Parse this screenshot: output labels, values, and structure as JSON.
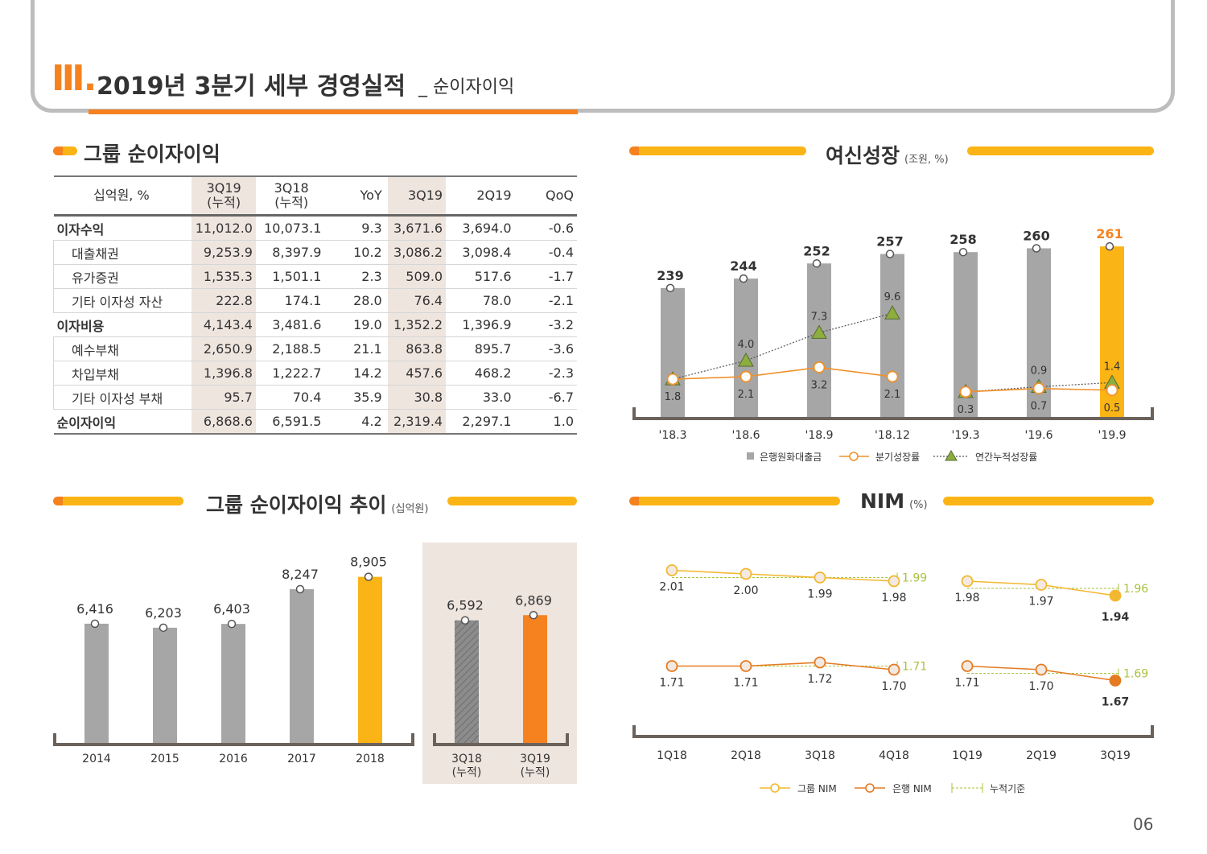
{
  "header": {
    "roman": "Ⅲ.",
    "title": "2019년 3분기 세부 경영실적",
    "subtitle": "_ 순이자이익"
  },
  "table": {
    "title": "그룹 순이자이익",
    "headers": [
      "십억원, %",
      "3Q19\n(누적)",
      "3Q18\n(누적)",
      "YoY",
      "3Q19",
      "2Q19",
      "QoQ"
    ],
    "rows": [
      {
        "label": "이자수익",
        "level": 0,
        "values": [
          "11,012.0",
          "10,073.1",
          "9.3",
          "3,671.6",
          "3,694.0",
          "-0.6"
        ]
      },
      {
        "label": "대출채권",
        "level": 1,
        "values": [
          "9,253.9",
          "8,397.9",
          "10.2",
          "3,086.2",
          "3,098.4",
          "-0.4"
        ]
      },
      {
        "label": "유가증권",
        "level": 1,
        "values": [
          "1,535.3",
          "1,501.1",
          "2.3",
          "509.0",
          "517.6",
          "-1.7"
        ]
      },
      {
        "label": "기타 이자성 자산",
        "level": 1,
        "values": [
          "222.8",
          "174.1",
          "28.0",
          "76.4",
          "78.0",
          "-2.1"
        ]
      },
      {
        "label": "이자비용",
        "level": 0,
        "values": [
          "4,143.4",
          "3,481.6",
          "19.0",
          "1,352.2",
          "1,396.9",
          "-3.2"
        ]
      },
      {
        "label": "예수부채",
        "level": 1,
        "values": [
          "2,650.9",
          "2,188.5",
          "21.1",
          "863.8",
          "895.7",
          "-3.6"
        ]
      },
      {
        "label": "차입부채",
        "level": 1,
        "values": [
          "1,396.8",
          "1,222.7",
          "14.2",
          "457.6",
          "468.2",
          "-2.3"
        ]
      },
      {
        "label": "기타 이자성 부채",
        "level": 1,
        "values": [
          "95.7",
          "70.4",
          "35.9",
          "30.8",
          "33.0",
          "-6.7"
        ]
      },
      {
        "label": "순이자이익",
        "level": 0,
        "values": [
          "6,868.6",
          "6,591.5",
          "4.2",
          "2,319.4",
          "2,297.1",
          "1.0"
        ]
      }
    ]
  },
  "loan": {
    "title": "여신성장",
    "unit": "(조원, %)",
    "legend": [
      "은행원화대출금",
      "분기성장률",
      "연간누적성장률"
    ],
    "colors": {
      "bar": "#a6a6a6",
      "highlight": "#fbb416",
      "quarter": "#f0912b",
      "annual": "#8dae3f"
    }
  },
  "nii": {
    "title": "그룹 순이자이익 추이",
    "unit": "(십억원)",
    "colors": {
      "bar": "#a6a6a6",
      "highlight": "#fbb416",
      "cum18": "#8c8c8c",
      "cum19": "#f5821f",
      "panel": "#efe5df"
    }
  },
  "nim": {
    "title": "NIM",
    "unit": "(%)",
    "legend": [
      "그룹 NIM",
      "은행 NIM",
      "누적기준"
    ],
    "colors": {
      "group": "#f2b830",
      "bank": "#e57a22",
      "cum": "#a9c23f"
    }
  },
  "chart_data": [
    {
      "type": "bar",
      "title": "여신성장",
      "categories": [
        "'18.3",
        "'18.6",
        "'18.9",
        "'18.12",
        "'19.3",
        "'19.6",
        "'19.9"
      ],
      "series": [
        {
          "name": "은행원화대출금",
          "values": [
            239,
            244,
            252,
            257,
            258,
            260,
            261
          ],
          "labels": [
            "239",
            "244",
            "252",
            "257",
            "258",
            "260",
            "261"
          ]
        },
        {
          "name": "분기성장률",
          "values": [
            1.8,
            2.1,
            3.2,
            2.1,
            0.3,
            0.7,
            0.5
          ],
          "labels": [
            "1.8",
            "2.1",
            "3.2",
            "2.1",
            "0.3",
            "0.7",
            "0.5"
          ]
        },
        {
          "name": "연간누적성장률",
          "x_index": [
            0,
            1,
            2,
            3,
            4,
            5,
            6
          ],
          "values": [
            1.8,
            4.0,
            7.3,
            9.6,
            0.3,
            0.9,
            1.4
          ],
          "labels": [
            "",
            "4.0",
            "7.3",
            "9.6",
            "",
            "0.9",
            "1.4"
          ]
        }
      ],
      "legend_position": "bottom"
    },
    {
      "type": "bar",
      "title": "그룹 순이자이익 추이",
      "categories": [
        "2014",
        "2015",
        "2016",
        "2017",
        "2018",
        "3Q18\n(누적)",
        "3Q19\n(누적)"
      ],
      "values": [
        6416,
        6203,
        6403,
        8247,
        8905,
        6592,
        6869
      ],
      "labels": [
        "6,416",
        "6,203",
        "6,403",
        "8,247",
        "8,905",
        "6,592",
        "6,869"
      ]
    },
    {
      "type": "line",
      "title": "NIM",
      "categories": [
        "1Q18",
        "2Q18",
        "3Q18",
        "4Q18",
        "1Q19",
        "2Q19",
        "3Q19"
      ],
      "series": [
        {
          "name": "그룹 NIM",
          "values": [
            2.01,
            2.0,
            1.99,
            1.98,
            1.98,
            1.97,
            1.94
          ],
          "labels": [
            "2.01",
            "2.00",
            "1.99",
            "1.98",
            "1.98",
            "1.97",
            "1.94"
          ]
        },
        {
          "name": "은행 NIM",
          "values": [
            1.71,
            1.71,
            1.72,
            1.7,
            1.71,
            1.7,
            1.67
          ],
          "labels": [
            "1.71",
            "1.71",
            "1.72",
            "1.70",
            "1.71",
            "1.70",
            "1.67"
          ]
        }
      ],
      "cumulative": {
        "group": {
          "2018": "1.99",
          "2019": "1.96"
        },
        "bank": {
          "2018": "1.71",
          "2019": "1.69"
        }
      },
      "legend_position": "bottom"
    }
  ],
  "page_number": "06"
}
